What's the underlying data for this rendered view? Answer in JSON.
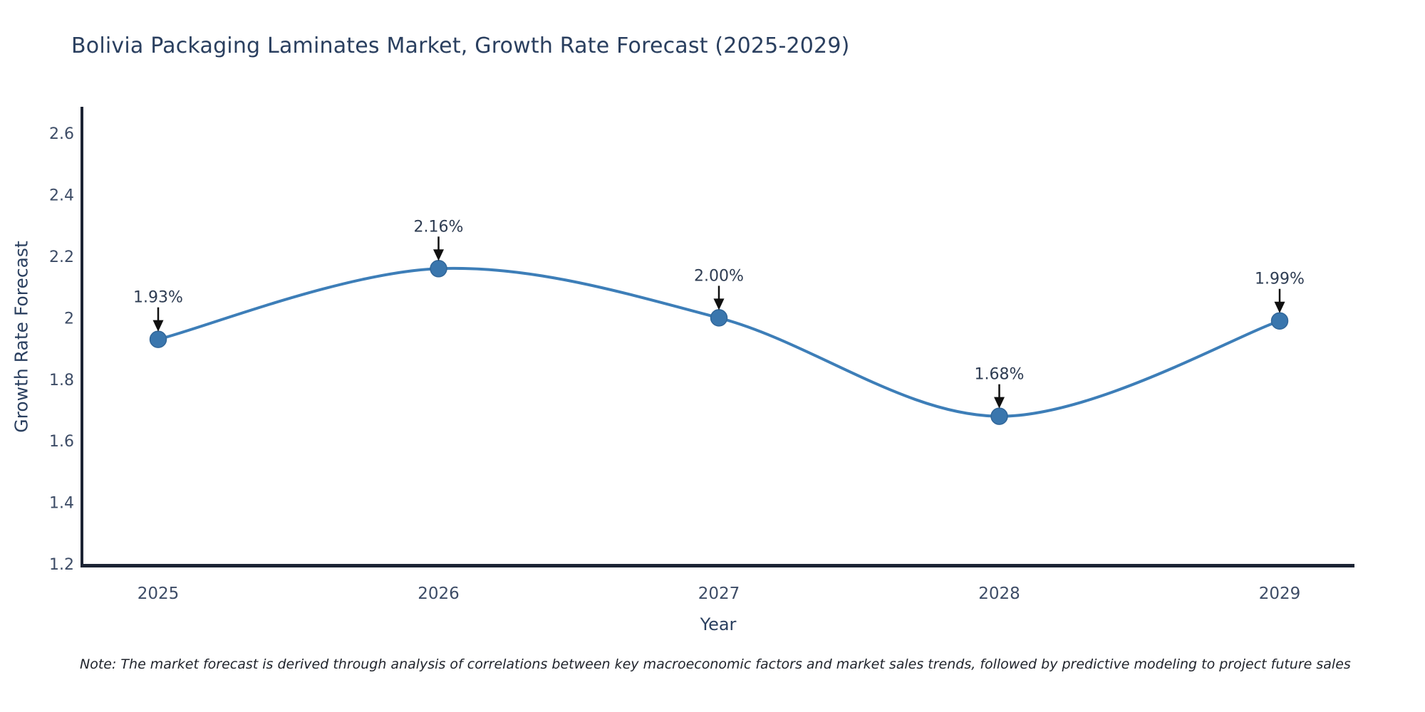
{
  "chart_data": {
    "type": "line",
    "line_shape": "spline",
    "title": "Bolivia Packaging Laminates Market, Growth Rate Forecast (2025-2029)",
    "xlabel": "Year",
    "ylabel": "Growth Rate Forecast",
    "categories": [
      "2025",
      "2026",
      "2027",
      "2028",
      "2029"
    ],
    "series": [
      {
        "name": "Growth Rate Forecast",
        "values": [
          1.93,
          2.16,
          2.0,
          1.68,
          1.99
        ],
        "point_labels": [
          "1.93%",
          "2.16%",
          "2.00%",
          "1.68%",
          "1.99%"
        ]
      }
    ],
    "ylim": [
      1.2,
      2.6
    ],
    "yticks": [
      "1.2",
      "1.4",
      "1.6",
      "1.8",
      "2",
      "2.2",
      "2.4",
      "2.6"
    ],
    "grid": false,
    "legend": "none",
    "annotations_style": "value label with down arrow above each point",
    "colors": {
      "line": "#3d7eb8",
      "marker": "#3a76ad",
      "marker_edge": "#316699",
      "axis_line": "#1c2434",
      "title_text": "#2a3f5f",
      "tick_text": "#3d4c66",
      "axis_title_text": "#2a3f5f",
      "annotation_text": "#2e3c52",
      "annotation_arrow": "#101010",
      "note_text": "#20242c"
    },
    "note": "Note: The market forecast is derived through analysis of correlations between key macroeconomic factors and market sales trends, followed by predictive modeling to project future sales"
  }
}
